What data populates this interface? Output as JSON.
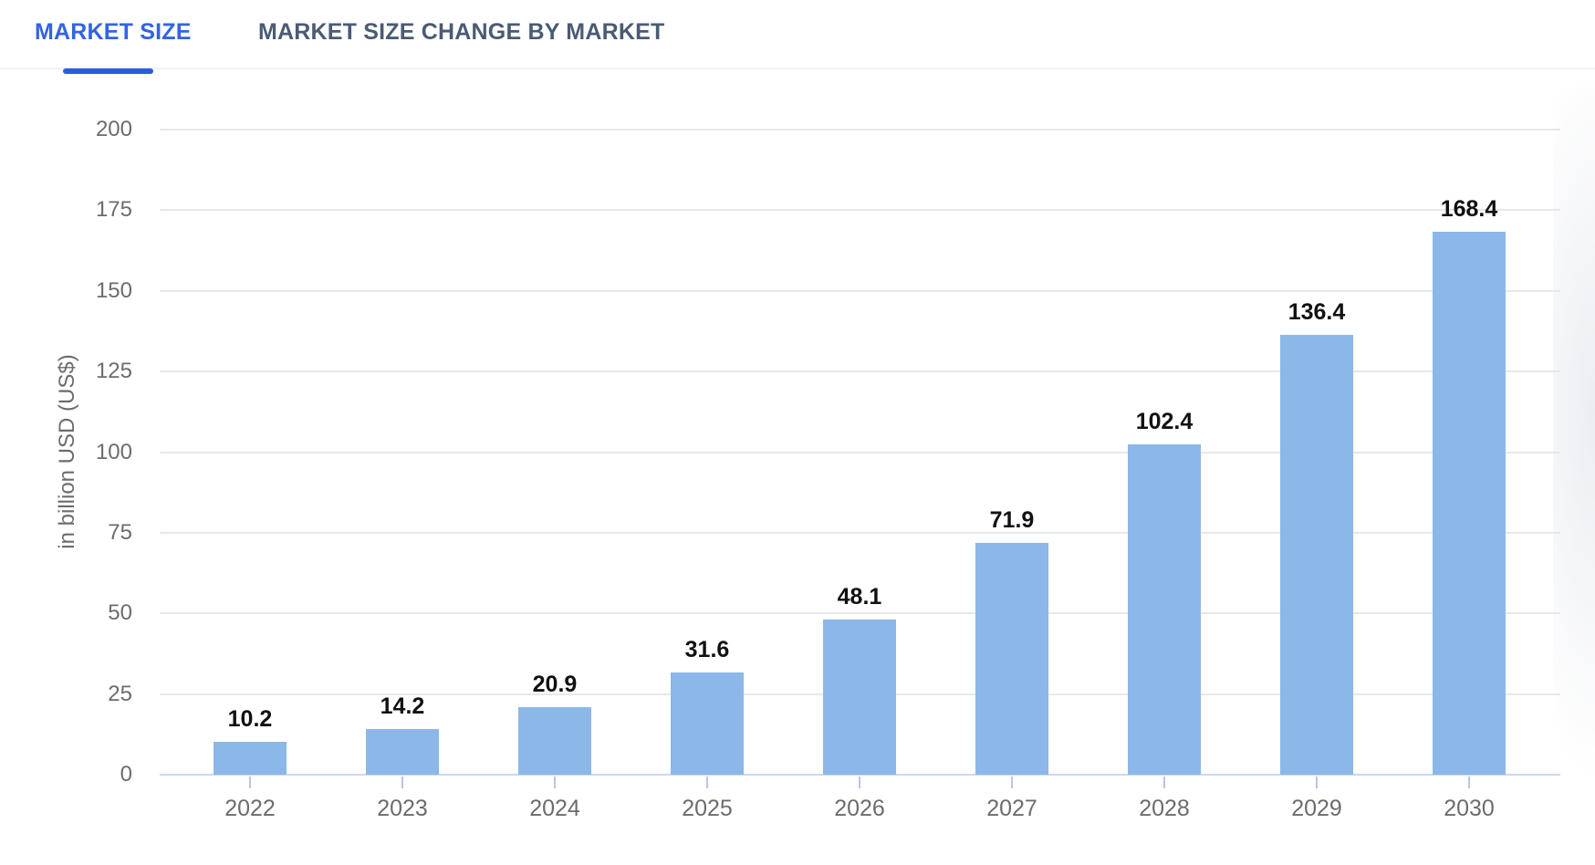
{
  "tabs": [
    {
      "label": "MARKET SIZE",
      "active": true
    },
    {
      "label": "MARKET SIZE CHANGE BY MARKET",
      "active": false
    }
  ],
  "chart_data": {
    "type": "bar",
    "categories": [
      "2022",
      "2023",
      "2024",
      "2025",
      "2026",
      "2027",
      "2028",
      "2029",
      "2030"
    ],
    "values": [
      10.2,
      14.2,
      20.9,
      31.6,
      48.1,
      71.9,
      102.4,
      136.4,
      168.4
    ],
    "value_labels": [
      "10.2",
      "14.2",
      "20.9",
      "31.6",
      "48.1",
      "71.9",
      "102.4",
      "136.4",
      "168.4"
    ],
    "xlabel": "",
    "ylabel": "in billion USD (US$)",
    "ylim": [
      0,
      200
    ],
    "yticks": [
      0,
      25,
      50,
      75,
      100,
      125,
      150,
      175,
      200
    ],
    "grid": true,
    "legend": false,
    "bar_color": "#8bb8e8"
  },
  "colors": {
    "tab_active_text": "#3263e4",
    "tab_indicator": "#2b5ce0",
    "tab_inactive_text": "#4a5b74",
    "bar_fill": "#8bb8e8",
    "value_label_text": "#111111",
    "axis_label_text": "#6c6c6c",
    "gridline": "#e8e8ea",
    "axis_line": "#ccd7ec",
    "tick_mark": "#b7c7e6"
  }
}
